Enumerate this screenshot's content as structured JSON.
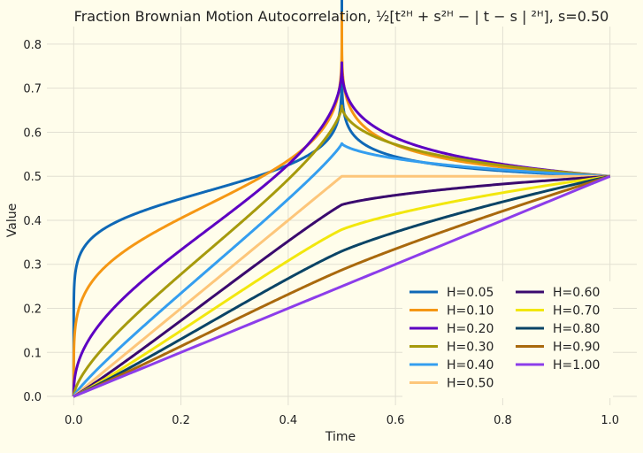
{
  "chart_data": {
    "type": "line",
    "title": "Fraction Brownian Motion Autocorrelation, ½[t²ᴴ + s²ᴴ − | t − s | ²ᴴ], s=0.50",
    "xlabel": "Time",
    "ylabel": "Value",
    "xlim": [
      -0.05,
      1.05
    ],
    "ylim": [
      -0.02,
      0.84
    ],
    "x_ticks": [
      0.0,
      0.2,
      0.4,
      0.6,
      0.8,
      1.0
    ],
    "x_tick_labels": [
      "0.0",
      "0.2",
      "0.4",
      "0.6",
      "0.8",
      "1.0"
    ],
    "y_ticks": [
      0.0,
      0.1,
      0.2,
      0.3,
      0.4,
      0.5,
      0.6,
      0.7,
      0.8
    ],
    "y_tick_labels": [
      "0.0",
      "0.1",
      "0.2",
      "0.3",
      "0.4",
      "0.5",
      "0.6",
      "0.7",
      "0.8"
    ],
    "grid": true,
    "legend_position": "lower-right",
    "legend_columns": 2,
    "s": 0.5,
    "series": [
      {
        "name": "H=0.05",
        "H": 0.05,
        "color": "#0f68b6"
      },
      {
        "name": "H=0.10",
        "H": 0.1,
        "color": "#f59714"
      },
      {
        "name": "H=0.20",
        "H": 0.2,
        "color": "#5d00c2"
      },
      {
        "name": "H=0.30",
        "H": 0.3,
        "color": "#a69a0c"
      },
      {
        "name": "H=0.40",
        "H": 0.4,
        "color": "#349eef"
      },
      {
        "name": "H=0.50",
        "H": 0.5,
        "color": "#fdc67a"
      },
      {
        "name": "H=0.60",
        "H": 0.6,
        "color": "#3a0a6e"
      },
      {
        "name": "H=0.70",
        "H": 0.7,
        "color": "#f2e70d"
      },
      {
        "name": "H=0.80",
        "H": 0.8,
        "color": "#0a4466"
      },
      {
        "name": "H=0.90",
        "H": 0.9,
        "color": "#a9690d"
      },
      {
        "name": "H=1.00",
        "H": 1.0,
        "color": "#8c3dea"
      }
    ]
  }
}
